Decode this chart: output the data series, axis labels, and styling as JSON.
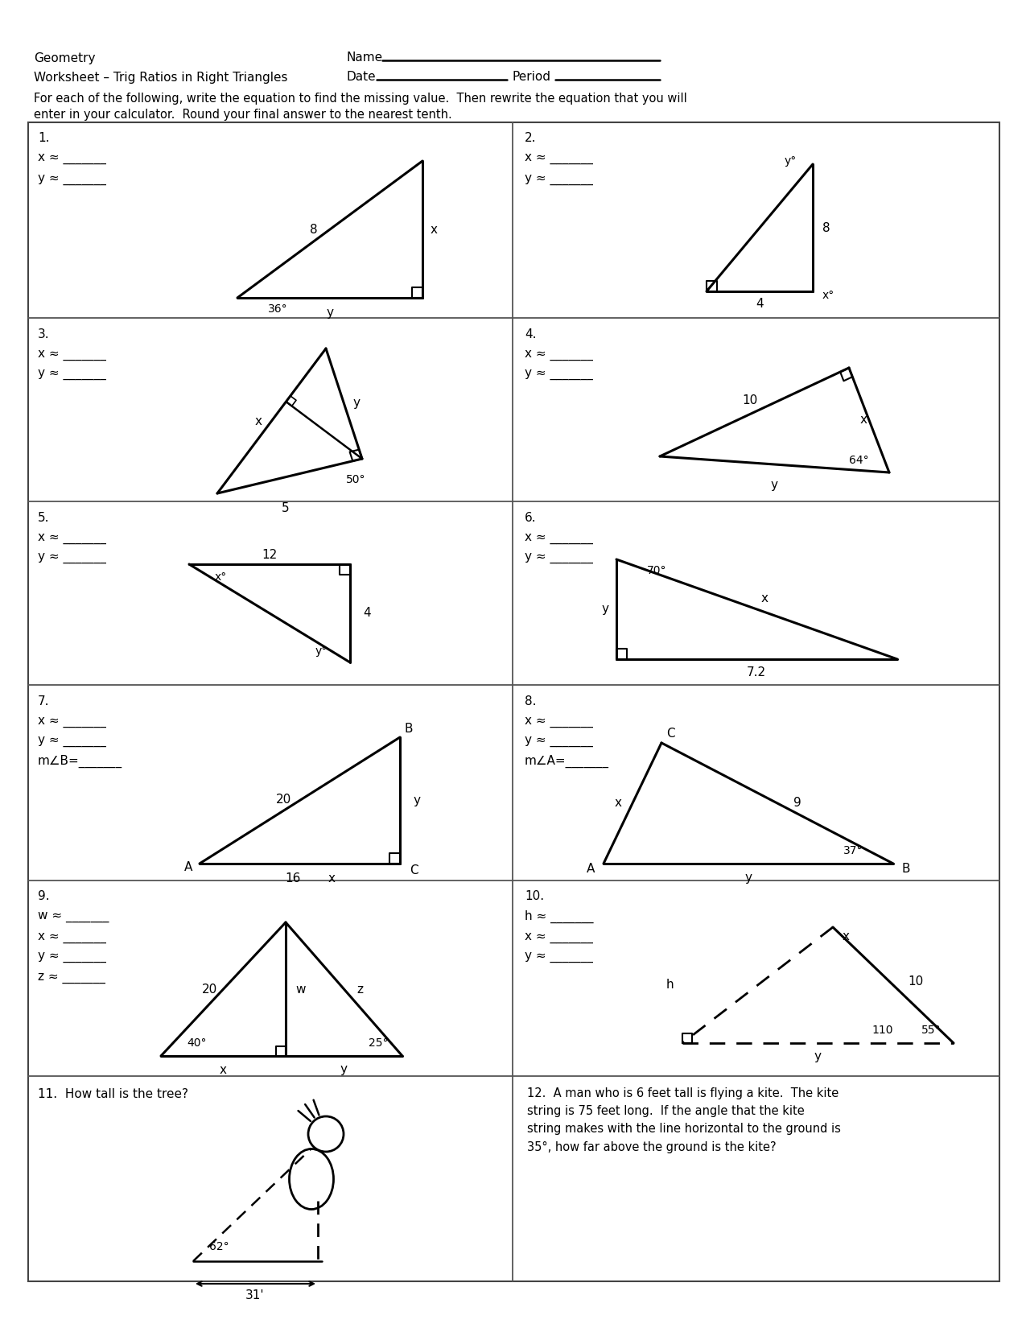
{
  "title_left1": "Geometry",
  "title_left2": "Worksheet – Trig Ratios in Right Triangles",
  "name_label": "Name",
  "date_label": "Date",
  "period_label": "Period",
  "instructions": "For each of the following, write the equation to find the missing value.  Then rewrite the equation that you will\nenter in your calculator.  Round your final answer to the nearest tenth.",
  "bg_color": "#ffffff",
  "text_color": "#000000"
}
